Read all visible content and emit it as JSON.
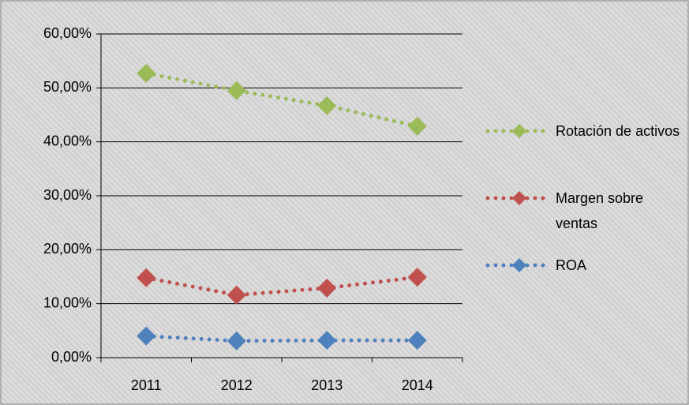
{
  "chart_data": {
    "type": "line",
    "categories": [
      "2011",
      "2012",
      "2013",
      "2014"
    ],
    "series": [
      {
        "name": "Rotación de activos",
        "color": "#9bbb59",
        "values": [
          52.7,
          49.5,
          46.7,
          42.9
        ]
      },
      {
        "name": "Margen sobre ventas",
        "color": "#c0504d",
        "values": [
          14.8,
          11.6,
          12.9,
          14.9
        ]
      },
      {
        "name": "ROA",
        "color": "#4f81bd",
        "values": [
          4.0,
          3.1,
          3.2,
          3.2
        ]
      }
    ],
    "ylim": [
      0,
      60
    ],
    "yticks": [
      {
        "value": 0,
        "label": "0,00%"
      },
      {
        "value": 10,
        "label": "10,00%"
      },
      {
        "value": 20,
        "label": "20,00%"
      },
      {
        "value": 30,
        "label": "30,00%"
      },
      {
        "value": 40,
        "label": "40,00%"
      },
      {
        "value": 50,
        "label": "50,00%"
      },
      {
        "value": 60,
        "label": "60,00%"
      }
    ],
    "grid": true,
    "legend": "right"
  }
}
